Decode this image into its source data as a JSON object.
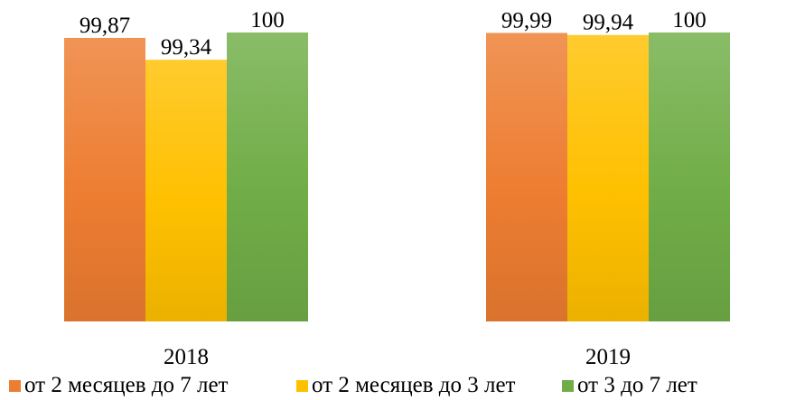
{
  "chart_data": {
    "type": "bar",
    "categories": [
      "2018",
      "2019"
    ],
    "series": [
      {
        "name": "от 2 месяцев до 7 лет",
        "values": [
          99.87,
          99.99
        ],
        "labels": [
          "99,87",
          "99,99"
        ],
        "color": "#ED7D31"
      },
      {
        "name": "от 2 месяцев до 3 лет",
        "values": [
          99.34,
          99.94
        ],
        "labels": [
          "99,34",
          "99,94"
        ],
        "color": "#FFC000"
      },
      {
        "name": "от 3 до 7 лет",
        "values": [
          100,
          100
        ],
        "labels": [
          "100",
          "100"
        ],
        "color": "#70AD47"
      }
    ],
    "ylim": [
      93,
      100
    ],
    "grid": false,
    "legend_position": "bottom"
  }
}
